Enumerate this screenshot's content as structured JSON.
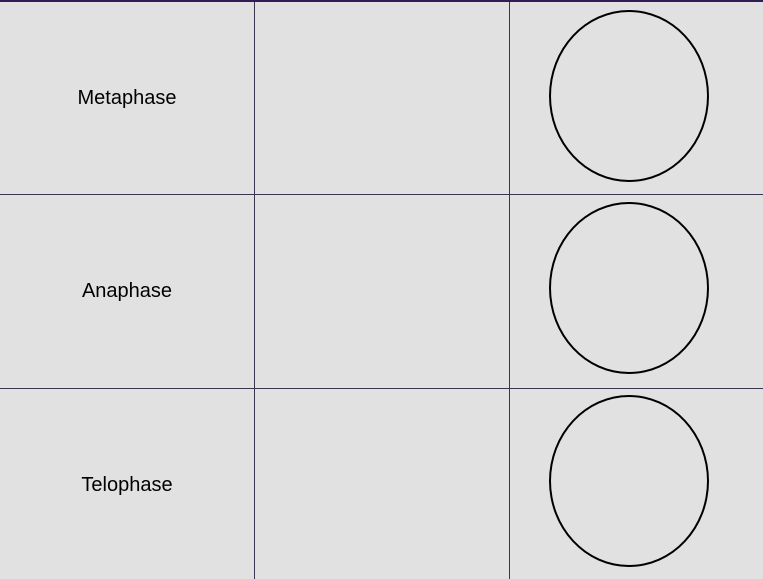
{
  "table": {
    "rows": [
      {
        "phase": "Metaphase"
      },
      {
        "phase": "Anaphase"
      },
      {
        "phase": "Telophase"
      }
    ]
  }
}
